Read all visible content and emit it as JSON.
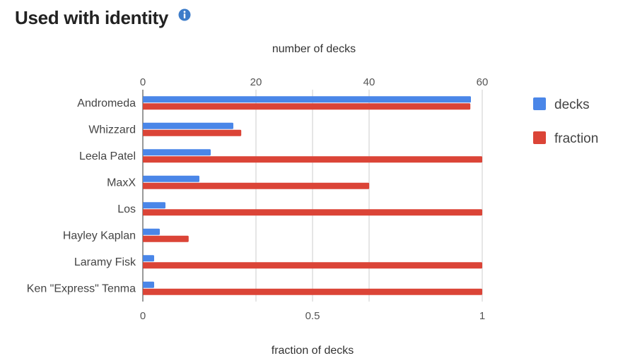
{
  "header": {
    "title": "Used with identity",
    "info_icon": "info-circle-icon"
  },
  "colors": {
    "decks": "#4a86e8",
    "fraction": "#db4437",
    "text": "#444444",
    "grid": "#cccccc"
  },
  "chart_data": {
    "type": "bar",
    "orientation": "horizontal",
    "categories": [
      "Andromeda",
      "Whizzard",
      "Leela Patel",
      "MaxX",
      "Los",
      "Hayley Kaplan",
      "Laramy Fisk",
      "Ken \"Express\" Tenma"
    ],
    "series": [
      {
        "name": "decks",
        "axis": "top",
        "values": [
          58,
          16,
          12,
          10,
          4,
          3,
          2,
          2
        ]
      },
      {
        "name": "fraction",
        "axis": "bottom",
        "values": [
          0.965,
          0.29,
          1.0,
          0.667,
          1.0,
          0.135,
          1.0,
          1.0
        ]
      }
    ],
    "top_axis": {
      "label": "number of decks",
      "range": [
        0,
        60
      ],
      "ticks": [
        "0",
        "20",
        "40",
        "60"
      ],
      "tick_values": [
        0,
        20,
        40,
        60
      ]
    },
    "bottom_axis": {
      "label": "fraction of decks",
      "range": [
        0,
        1
      ],
      "ticks": [
        "0",
        "0.5",
        "1"
      ],
      "tick_values": [
        0,
        0.5,
        1
      ]
    },
    "grid": true,
    "legend_position": "right"
  }
}
